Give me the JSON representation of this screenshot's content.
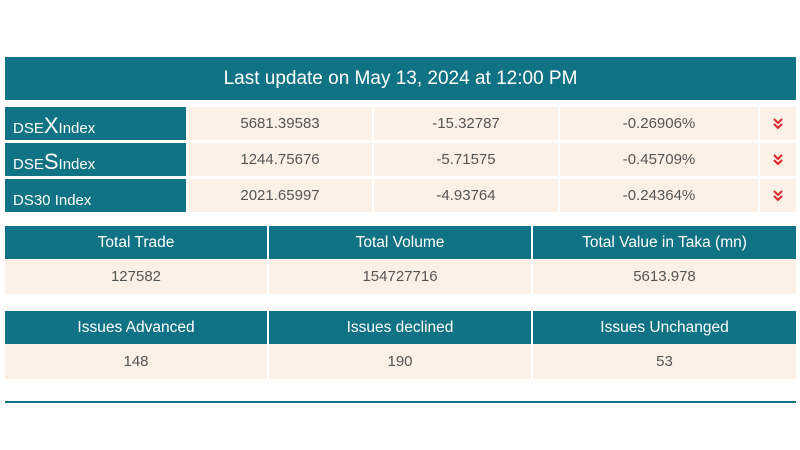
{
  "header": {
    "title": "Last update on May 13, 2024 at 12:00 PM"
  },
  "indices": [
    {
      "name_prefix": "DSE",
      "name_letter": "X",
      "name_suffix": " Index",
      "value": "5681.39583",
      "change": "-15.32787",
      "percent": "-0.26906%",
      "trend_icon": "double-chevron-down-icon"
    },
    {
      "name_prefix": "DSE",
      "name_letter": "S",
      "name_suffix": " Index",
      "value": "1244.75676",
      "change": "-5.71575",
      "percent": "-0.45709%",
      "trend_icon": "double-chevron-down-icon"
    },
    {
      "name_prefix": "DS30 Index",
      "name_letter": "",
      "name_suffix": "",
      "value": "2021.65997",
      "change": "-4.93764",
      "percent": "-0.24364%",
      "trend_icon": "double-chevron-down-icon"
    }
  ],
  "trade_stats": {
    "headers": [
      "Total Trade",
      "Total Volume",
      "Total Value in Taka (mn)"
    ],
    "values": [
      "127582",
      "154727716",
      "5613.978"
    ]
  },
  "issue_stats": {
    "headers": [
      "Issues Advanced",
      "Issues declined",
      "Issues Unchanged"
    ],
    "values": [
      "148",
      "190",
      "53"
    ]
  },
  "colors": {
    "header_bg": "#0f7285",
    "cell_bg": "#fdf0e6",
    "down_arrow": "#d9262b"
  }
}
